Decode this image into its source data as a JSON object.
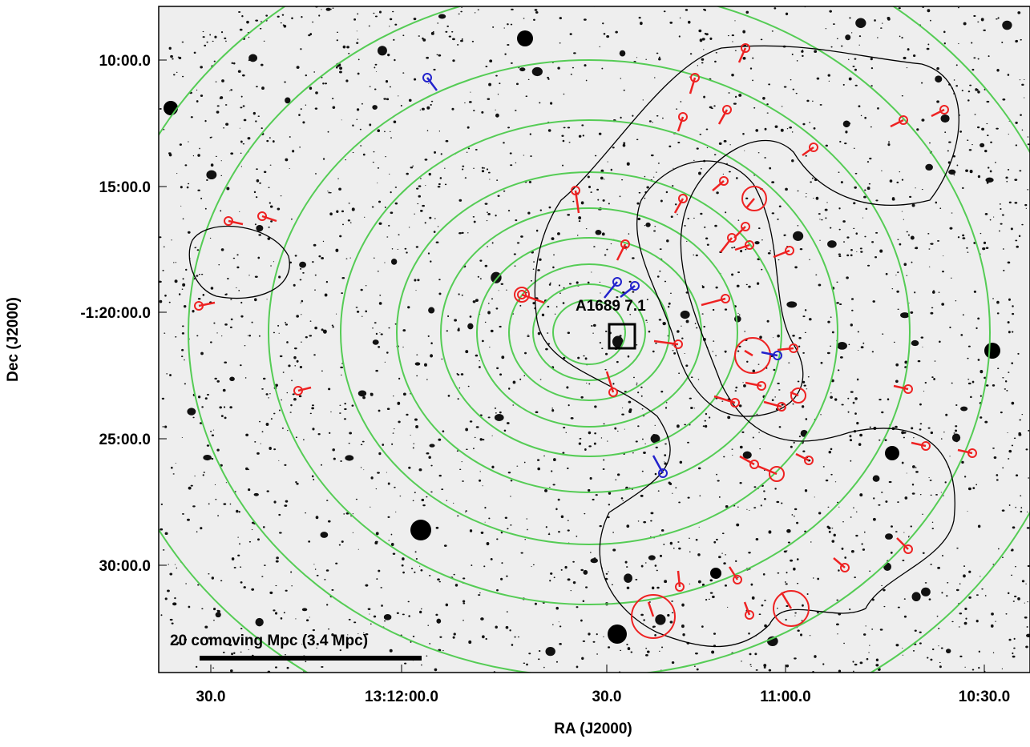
{
  "figure": {
    "x_axis": {
      "label": "RA (J2000)",
      "tick_labels": [
        "30.0",
        "13:12:00.0",
        "30.0",
        "11:00.0",
        "10:30.0"
      ]
    },
    "y_axis": {
      "label": "Dec (J2000)",
      "tick_labels": [
        "10:00.0",
        "15:00.0",
        "-1:20:00.0",
        "25:00.0",
        "30:00.0"
      ]
    },
    "annotations": {
      "target": "A1689 7.1",
      "scale_bar": "20 comoving Mpc (3.4 Mpc)"
    }
  }
}
